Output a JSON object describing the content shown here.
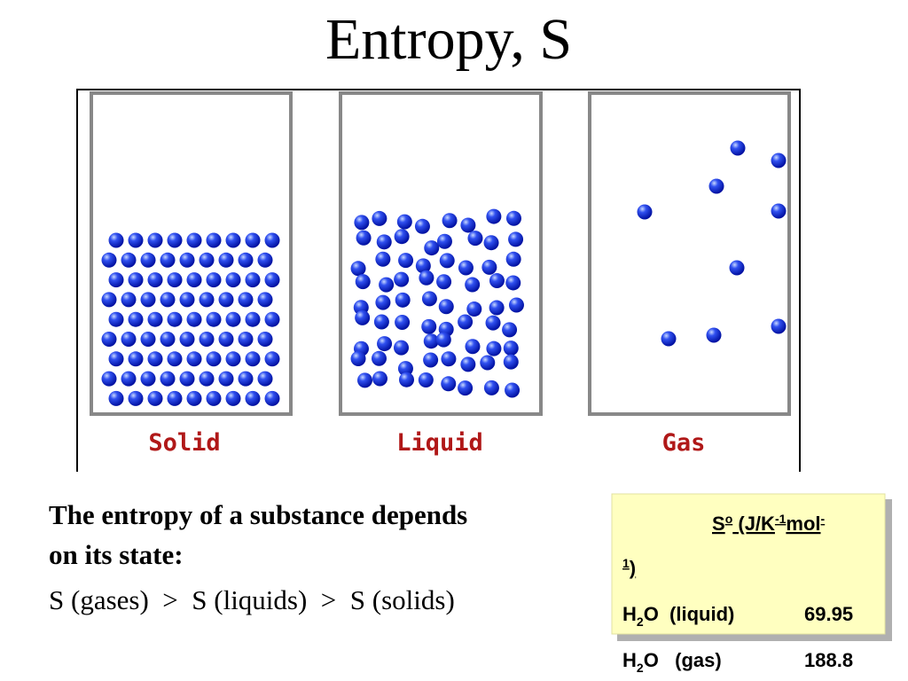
{
  "title": "Entropy,   S",
  "panels": [
    {
      "label": "Solid"
    },
    {
      "label": "Liquid"
    },
    {
      "label": "Gas"
    }
  ],
  "body": {
    "line1": "The entropy of a substance depends",
    "line2": "on its state:",
    "line3": "S (gases)  >  S (liquids)  >  S (solids)"
  },
  "table": {
    "header": [
      "S",
      "o",
      " (J/K",
      "-1",
      "mol",
      "-",
      "1",
      ")"
    ],
    "rows": [
      {
        "formula": [
          "H",
          "2",
          "O  (liquid)"
        ],
        "value": "69.95"
      },
      {
        "formula": [
          "H",
          "2",
          "O   (gas)"
        ],
        "value": "188.8"
      }
    ]
  }
}
